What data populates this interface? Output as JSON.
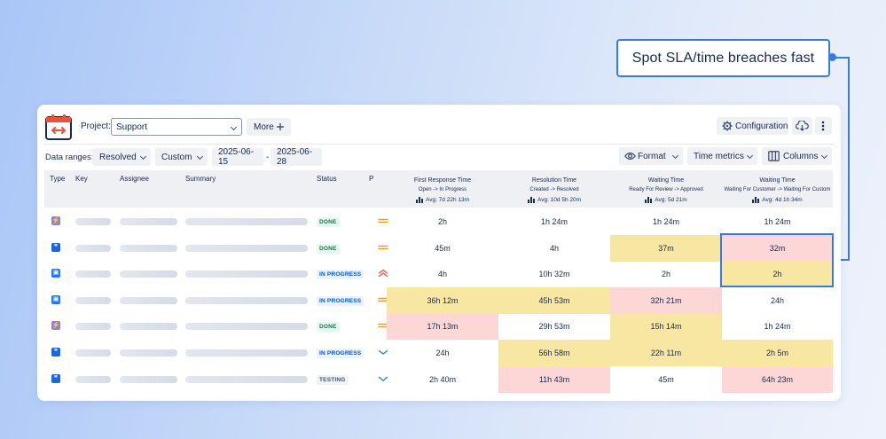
{
  "callout": {
    "text": "Spot SLA/time breaches fast"
  },
  "toolbar": {
    "project_label": "Project:",
    "project_value": "Support",
    "more_label": "More",
    "configuration_label": "Configuration"
  },
  "filters": {
    "data_ranges_label": "Data ranges:",
    "resolved_label": "Resolved",
    "custom_label": "Custom",
    "date_from": "2025-06-15",
    "date_sep": "-",
    "date_to": "2025-06-28",
    "format_label": "Format",
    "time_metrics_label": "Time metrics",
    "columns_label": "Columns"
  },
  "table": {
    "headers": {
      "type": "Type",
      "key": "Key",
      "assignee": "Assignee",
      "summary": "Summary",
      "status": "Status",
      "priority": "P"
    },
    "metrics": [
      {
        "title": "First Response Time",
        "sub": "Open -> In Progress",
        "avg": "Avg: 7d 22h 13m"
      },
      {
        "title": "Resolution Time",
        "sub": "Created -> Resolved",
        "avg": "Avg: 10d 5h 20m"
      },
      {
        "title": "Waiting Time",
        "sub": "Ready For Review -> Approved",
        "avg": "Avg: 5d 21m"
      },
      {
        "title": "Waiting Time",
        "sub": "Waiting For Customer -> Waiting For Custom",
        "avg": "Avg: 4d 1h 34m"
      }
    ],
    "rows": [
      {
        "type": "story",
        "status": "DONE",
        "priority": "medium",
        "values": [
          "2h",
          "1h 24m",
          "1h 24m",
          "1h 24m"
        ],
        "flags": [
          "",
          "",
          "",
          ""
        ]
      },
      {
        "type": "quote",
        "status": "DONE",
        "priority": "medium",
        "values": [
          "45m",
          "4h",
          "37m",
          "32m"
        ],
        "flags": [
          "",
          "",
          "warn",
          "breach"
        ]
      },
      {
        "type": "task",
        "status": "IN PROGRESS",
        "priority": "highest",
        "values": [
          "4h",
          "10h 32m",
          "2h",
          "2h"
        ],
        "flags": [
          "",
          "",
          "",
          "warn"
        ]
      },
      {
        "type": "task",
        "status": "IN PROGRESS",
        "priority": "medium",
        "values": [
          "36h 12m",
          "45h 53m",
          "32h 21m",
          "24h"
        ],
        "flags": [
          "warn",
          "warn",
          "breach",
          ""
        ]
      },
      {
        "type": "story",
        "status": "DONE",
        "priority": "medium",
        "values": [
          "17h 13m",
          "29h 53m",
          "15h 14m",
          "1h 24m"
        ],
        "flags": [
          "breach",
          "",
          "warn",
          ""
        ]
      },
      {
        "type": "quote",
        "status": "IN PROGRESS",
        "priority": "low",
        "values": [
          "24h",
          "56h 58m",
          "22h 11m",
          "2h 5m"
        ],
        "flags": [
          "",
          "warn",
          "warn",
          "warn"
        ]
      },
      {
        "type": "quote",
        "status": "TESTING",
        "priority": "low",
        "values": [
          "2h 40m",
          "11h 43m",
          "45m",
          "64h 23m"
        ],
        "flags": [
          "",
          "breach",
          "",
          "breach"
        ]
      }
    ]
  },
  "colors": {
    "accent": "#3a7be0",
    "warn": "#f8e6a3",
    "breach": "#fdd6d6",
    "done_bg": "#e3fcef",
    "done_fg": "#216e4e",
    "progress_bg": "#e9f2ff",
    "progress_fg": "#0055cc",
    "testing_bg": "#f1f2f4",
    "testing_fg": "#44546f"
  }
}
